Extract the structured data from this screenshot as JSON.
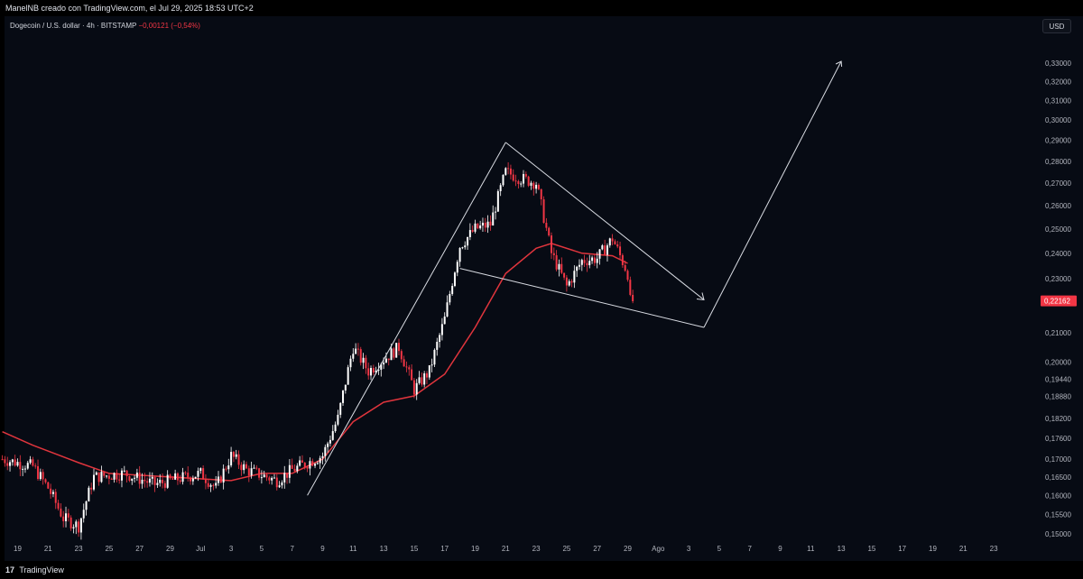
{
  "header": {
    "text": "ManelNB creado con TradingView.com, el Jul 29, 2025 18:53 UTC+2"
  },
  "symbol": {
    "label": "Dogecoin / U.S. dollar · 4h · BITSTAMP",
    "change": "−0,00121 (−0,54%)"
  },
  "currency": {
    "label": "USD"
  },
  "footer": {
    "logo": "17",
    "brand": "TradingView"
  },
  "colors": {
    "bg": "#070b14",
    "up": "#ffffff",
    "down": "#f23645",
    "ma": "#e0353d",
    "drawing": "#d8dbe2",
    "price_badge": "#f23645"
  },
  "chart_data": {
    "type": "candlestick",
    "symbol": "Dogecoin / U.S. dollar",
    "interval": "4h",
    "exchange": "BITSTAMP",
    "x_ticks": [
      "19",
      "21",
      "23",
      "25",
      "27",
      "29",
      "Jul",
      "3",
      "5",
      "7",
      "9",
      "11",
      "13",
      "15",
      "17",
      "19",
      "21",
      "23",
      "25",
      "27",
      "29",
      "Ago",
      "3",
      "5",
      "7",
      "9",
      "11",
      "13",
      "15",
      "17",
      "19",
      "21",
      "23"
    ],
    "y_ticks": [
      "0,33000",
      "0,32000",
      "0,31000",
      "0,30000",
      "0,29000",
      "0,28000",
      "0,27000",
      "0,26000",
      "0,25000",
      "0,24000",
      "0,23000",
      "0,21000",
      "0,20000",
      "0,19440",
      "0,18880",
      "0,18200",
      "0,17600",
      "0,17000",
      "0,16500",
      "0,16000",
      "0,15500",
      "0,15000"
    ],
    "y_range": [
      0.148,
      0.335
    ],
    "y_scale": "log",
    "last_price": "0,22162",
    "price_waypoints": [
      [
        "18 Jun",
        0.17
      ],
      [
        "20 Jun",
        0.168
      ],
      [
        "21 Jun",
        0.162
      ],
      [
        "22 Jun",
        0.154
      ],
      [
        "23 Jun",
        0.152
      ],
      [
        "24 Jun",
        0.165
      ],
      [
        "26 Jun",
        0.166
      ],
      [
        "28 Jun",
        0.163
      ],
      [
        "30 Jun",
        0.165
      ],
      [
        "1 Jul",
        0.166
      ],
      [
        "2 Jul",
        0.162
      ],
      [
        "3 Jul",
        0.171
      ],
      [
        "4 Jul",
        0.167
      ],
      [
        "6 Jul",
        0.164
      ],
      [
        "7 Jul",
        0.167
      ],
      [
        "8 Jul",
        0.169
      ],
      [
        "9 Jul",
        0.171
      ],
      [
        "10 Jul",
        0.182
      ],
      [
        "11 Jul",
        0.205
      ],
      [
        "12 Jul",
        0.197
      ],
      [
        "14 Jul",
        0.205
      ],
      [
        "15 Jul",
        0.191
      ],
      [
        "16 Jul",
        0.197
      ],
      [
        "17 Jul",
        0.215
      ],
      [
        "18 Jul",
        0.243
      ],
      [
        "19 Jul",
        0.25
      ],
      [
        "20 Jul",
        0.252
      ],
      [
        "21 Jul",
        0.275
      ],
      [
        "22 Jul",
        0.272
      ],
      [
        "23 Jul",
        0.27
      ],
      [
        "24 Jul",
        0.24
      ],
      [
        "25 Jul",
        0.227
      ],
      [
        "26 Jul",
        0.237
      ],
      [
        "27 Jul",
        0.238
      ],
      [
        "28 Jul",
        0.246
      ],
      [
        "29 Jul",
        0.232
      ],
      [
        "29 Jul",
        0.2216
      ]
    ],
    "moving_average": [
      [
        "18 Jun",
        0.178
      ],
      [
        "20 Jun",
        0.174
      ],
      [
        "23 Jun",
        0.169
      ],
      [
        "25 Jun",
        0.166
      ],
      [
        "29 Jun",
        0.165
      ],
      [
        "3 Jul",
        0.164
      ],
      [
        "5 Jul",
        0.166
      ],
      [
        "7 Jul",
        0.166
      ],
      [
        "9 Jul",
        0.17
      ],
      [
        "11 Jul",
        0.181
      ],
      [
        "13 Jul",
        0.187
      ],
      [
        "15 Jul",
        0.189
      ],
      [
        "17 Jul",
        0.196
      ],
      [
        "19 Jul",
        0.212
      ],
      [
        "21 Jul",
        0.232
      ],
      [
        "23 Jul",
        0.242
      ],
      [
        "24 Jul",
        0.244
      ],
      [
        "26 Jul",
        0.24
      ],
      [
        "28 Jul",
        0.239
      ],
      [
        "29 Jul",
        0.236
      ]
    ],
    "drawings": {
      "pattern": "rising wedge into falling wedge with projected breakout arrow",
      "lines": [
        [
          [
            "8 Jul",
            0.16
          ],
          [
            "21 Jul",
            0.289
          ]
        ],
        [
          [
            "21 Jul",
            0.289
          ],
          [
            "3 Aug",
            0.222
          ]
        ],
        [
          [
            "18 Jul",
            0.234
          ],
          [
            "3 Aug",
            0.212
          ]
        ]
      ],
      "projection_arrow": [
        [
          "3 Aug",
          0.212
        ],
        [
          "12 Aug",
          0.331
        ]
      ]
    }
  }
}
